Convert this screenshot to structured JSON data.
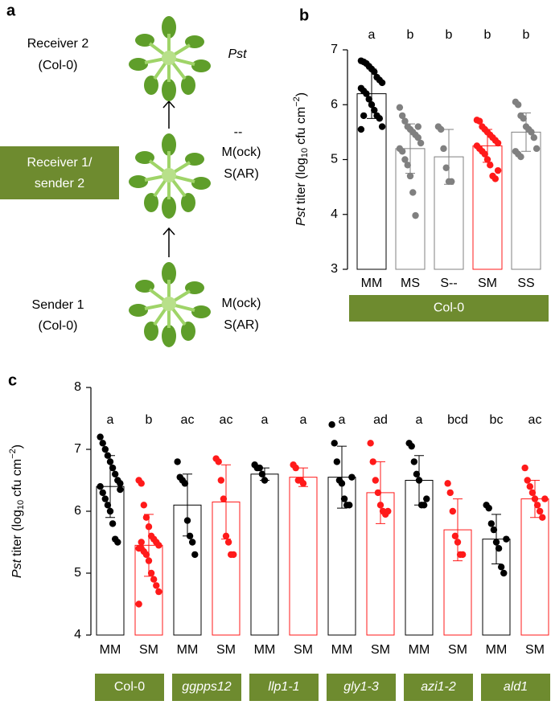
{
  "diagram": {
    "panel": "a",
    "receiver2": [
      "Receiver 2",
      "(Col-0)"
    ],
    "pathogen": "Pst",
    "receiver1": [
      "Receiver 1/",
      "sender 2"
    ],
    "receiver1_treatments": [
      "--",
      "M(ock)",
      "S(AR)"
    ],
    "sender1": [
      "Sender 1",
      "(Col-0)"
    ],
    "sender1_treatments": [
      "M(ock)",
      "S(AR)"
    ]
  },
  "chart_data": [
    {
      "type": "bar",
      "panel": "b",
      "ylabel": [
        "Pst",
        "titer (log",
        "10",
        "cfu cm",
        "−2",
        ")"
      ],
      "categories": [
        "MM",
        "MS",
        "S--",
        "SM",
        "SS"
      ],
      "values": [
        6.2,
        5.2,
        5.05,
        5.25,
        5.5
      ],
      "errors": [
        0.45,
        0.45,
        0.5,
        0.3,
        0.35
      ],
      "letters": [
        "a",
        "b",
        "b",
        "b",
        "b"
      ],
      "colors": [
        "#000000",
        "#808080",
        "#808080",
        "#ff1a1a",
        "#808080"
      ],
      "points": [
        [
          6.8,
          6.78,
          6.75,
          6.7,
          6.65,
          6.6,
          6.5,
          6.45,
          6.4,
          6.3,
          6.25,
          6.2,
          6.1,
          6.0,
          5.9,
          5.8,
          5.75,
          5.6,
          5.55,
          5.8
        ],
        [
          5.95,
          5.8,
          5.7,
          5.6,
          5.55,
          5.5,
          5.45,
          5.4,
          5.3,
          5.2,
          5.15,
          5.0,
          4.9,
          4.7,
          4.4,
          3.98,
          5.6
        ],
        [
          5.6,
          5.55,
          5.2,
          4.85,
          4.6,
          4.6
        ],
        [
          5.72,
          5.7,
          5.6,
          5.55,
          5.5,
          5.45,
          5.4,
          5.35,
          5.3,
          5.25,
          5.2,
          5.15,
          5.1,
          5.0,
          4.9,
          4.7,
          4.65,
          4.8
        ],
        [
          6.05,
          6.0,
          5.8,
          5.75,
          5.6,
          5.55,
          5.5,
          5.4,
          5.2,
          5.15,
          5.1,
          5.05
        ]
      ],
      "group_labels": [
        "Col-0"
      ],
      "group_label_italic": [
        false
      ],
      "group_color": "#6e8b2f",
      "ylim": [
        3,
        7
      ],
      "yticks": [
        3,
        4,
        5,
        6,
        7
      ]
    },
    {
      "type": "bar",
      "panel": "c",
      "ylabel": [
        "Pst",
        "titer (log",
        "10",
        "cfu cm",
        "−2",
        ")"
      ],
      "categories": [
        "MM",
        "SM",
        "MM",
        "SM",
        "MM",
        "SM",
        "MM",
        "SM",
        "MM",
        "SM",
        "MM",
        "SM"
      ],
      "values": [
        6.4,
        5.45,
        6.1,
        6.15,
        6.6,
        6.55,
        6.55,
        6.3,
        6.5,
        5.7,
        5.55,
        6.2
      ],
      "errors": [
        0.5,
        0.5,
        0.5,
        0.6,
        0.1,
        0.15,
        0.5,
        0.5,
        0.4,
        0.5,
        0.4,
        0.3
      ],
      "letters": [
        "a",
        "b",
        "ac",
        "ac",
        "a",
        "a",
        "a",
        "ad",
        "a",
        "bcd",
        "bc",
        "ac"
      ],
      "colors": [
        "#000000",
        "#ff1a1a",
        "#000000",
        "#ff1a1a",
        "#000000",
        "#ff1a1a",
        "#000000",
        "#ff1a1a",
        "#000000",
        "#ff1a1a",
        "#000000",
        "#ff1a1a"
      ],
      "points": [
        [
          7.2,
          7.1,
          7.0,
          6.9,
          6.8,
          6.7,
          6.6,
          6.5,
          6.45,
          6.4,
          6.3,
          6.2,
          6.1,
          6.0,
          5.8,
          5.55,
          5.5,
          6.35
        ],
        [
          6.5,
          6.45,
          6.1,
          5.9,
          5.75,
          5.6,
          5.55,
          5.5,
          5.45,
          5.4,
          5.4,
          5.35,
          5.3,
          5.2,
          5.0,
          4.9,
          4.8,
          4.7,
          4.5,
          5.5
        ],
        [
          6.8,
          6.55,
          6.5,
          6.45,
          5.85,
          5.6,
          5.5,
          5.3
        ],
        [
          6.85,
          6.8,
          6.5,
          6.2,
          5.6,
          5.5,
          5.3,
          5.3
        ],
        [
          6.75,
          6.7,
          6.7,
          6.6,
          6.5
        ],
        [
          6.75,
          6.7,
          6.5,
          6.5,
          6.45
        ],
        [
          7.4,
          7.1,
          6.8,
          6.5,
          6.45,
          6.2,
          6.1,
          6.1,
          6.55
        ],
        [
          7.1,
          6.8,
          6.5,
          6.3,
          6.1,
          6.0,
          5.95,
          6.0
        ],
        [
          7.1,
          7.05,
          6.8,
          6.6,
          6.5,
          6.1,
          6.1,
          6.2
        ],
        [
          6.45,
          6.3,
          6.0,
          5.6,
          5.5,
          5.3,
          5.3
        ],
        [
          6.1,
          6.05,
          5.8,
          5.7,
          5.5,
          5.4,
          5.1,
          5.0,
          5.55
        ],
        [
          6.7,
          6.5,
          6.4,
          6.3,
          6.2,
          6.1,
          6.0,
          5.9,
          6.2
        ]
      ],
      "group_labels": [
        "Col-0",
        "ggpps12",
        "llp1-1",
        "gly1-3",
        "azi1-2",
        "ald1"
      ],
      "group_label_italic": [
        false,
        true,
        true,
        true,
        true,
        true
      ],
      "group_color": "#6e8b2f",
      "ylim": [
        4,
        8
      ],
      "yticks": [
        4,
        5,
        6,
        7,
        8
      ]
    }
  ]
}
